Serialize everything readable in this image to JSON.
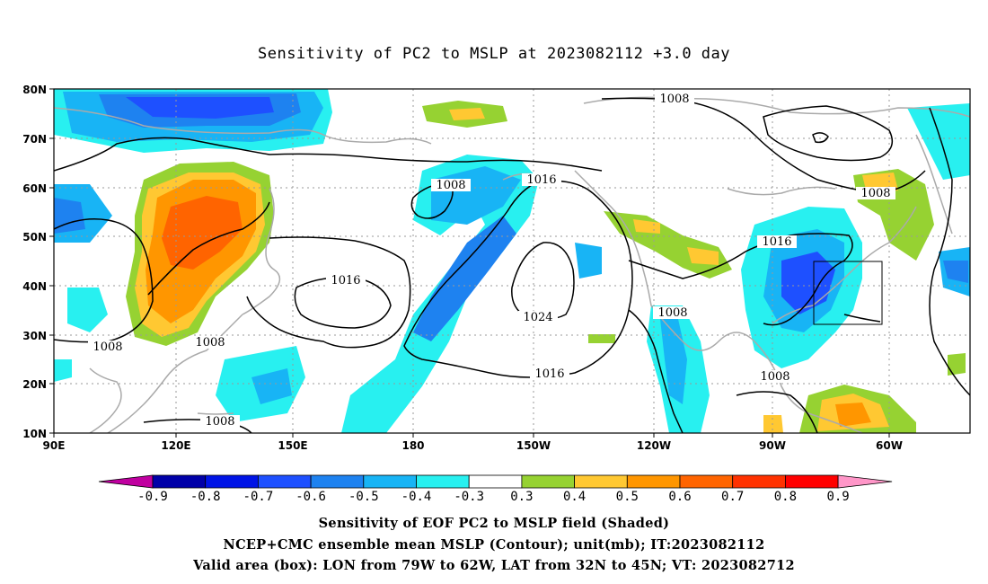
{
  "title": "Sensitivity of PC2 to MSLP at 2023082112 +3.0 day",
  "axes": {
    "lat_labels": [
      "80N",
      "70N",
      "60N",
      "50N",
      "40N",
      "30N",
      "20N",
      "10N"
    ],
    "lon_labels": [
      "90E",
      "120E",
      "150E",
      "180",
      "150W",
      "120W",
      "90W",
      "60W"
    ]
  },
  "colorbar": {
    "labels": [
      "-0.9",
      "-0.8",
      "-0.7",
      "-0.6",
      "-0.5",
      "-0.4",
      "-0.3",
      "0.3",
      "0.4",
      "0.5",
      "0.6",
      "0.7",
      "0.8",
      "0.9"
    ],
    "colors": [
      "#c000a0",
      "#0000a8",
      "#0014e6",
      "#1e50ff",
      "#1e82f0",
      "#18b4f5",
      "#28f0f0",
      "#ffffff",
      "#96d232",
      "#ffc832",
      "#ff9600",
      "#ff6400",
      "#ff3200",
      "#ff0000",
      "#ff96c8"
    ]
  },
  "contour_labels": {
    "c1008a": "1008",
    "c1008b": "1008",
    "c1008c": "1008",
    "c1008d": "1008",
    "c1008e": "1008",
    "c1008f": "1008",
    "c1008g": "1008",
    "c1008h": "1008",
    "c1016a": "1016",
    "c1016b": "1016",
    "c1016c": "1016",
    "c1016d": "1016",
    "c1024": "1024"
  },
  "footer": {
    "line1": "Sensitivity of EOF PC2 to MSLP field (Shaded)",
    "line2": "NCEP+CMC ensemble mean MSLP (Contour); unit(mb); IT:2023082112",
    "line3": "Valid area (box): LON from 79W to 62W, LAT from 32N to 45N; VT: 2023082712"
  }
}
